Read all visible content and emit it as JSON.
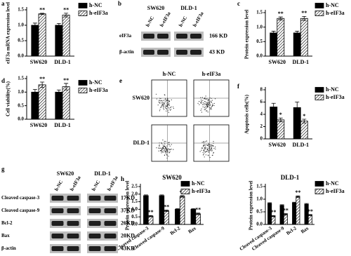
{
  "chart_data": [
    {
      "type": "bar",
      "panel": "a",
      "ylabel": "eIF3a mRNA expression level",
      "categories": [
        "SW620",
        "DLD-1"
      ],
      "series": [
        {
          "name": "h-NC",
          "color": "#000000",
          "hatch": false,
          "values": [
            1.0,
            1.0
          ],
          "errors": [
            0.07,
            0.06
          ]
        },
        {
          "name": "h-eIF3a",
          "color": "#000000",
          "hatch": true,
          "values": [
            1.37,
            1.33
          ],
          "errors": [
            0.02,
            0.06
          ],
          "marks": [
            "**",
            "**"
          ]
        }
      ],
      "ylim": [
        0,
        1.5
      ],
      "yticks": [
        {
          "value": 0,
          "label": "0.0"
        },
        0.5,
        {
          "value": 1,
          "label": "1.0"
        },
        1.5
      ]
    },
    {
      "type": "bar",
      "panel": "c",
      "ylabel": "Protein expression level",
      "categories": [
        "SW620",
        "DLD-1"
      ],
      "series": [
        {
          "name": "h-NC",
          "color": "#000000",
          "hatch": false,
          "values": [
            0.8,
            0.8
          ],
          "errors": [
            0.06,
            0.06
          ]
        },
        {
          "name": "h-eIF3a",
          "color": "#000000",
          "hatch": true,
          "values": [
            1.3,
            1.3
          ],
          "errors": [
            0.05,
            0.07
          ],
          "marks": [
            "**",
            "**"
          ]
        }
      ],
      "ylim": [
        0,
        1.5
      ],
      "yticks": [
        {
          "value": 0,
          "label": "0.0"
        },
        0.5,
        {
          "value": 1,
          "label": "1.0"
        },
        1.5
      ]
    },
    {
      "type": "bar",
      "panel": "d",
      "ylabel": "Cell viability(%)",
      "categories": [
        "SW620",
        "DLD-1"
      ],
      "series": [
        {
          "name": "h-NC",
          "color": "#000000",
          "hatch": false,
          "values": [
            1.0,
            1.0
          ],
          "errors": [
            0.1,
            0.08
          ]
        },
        {
          "name": "h-eIF3a",
          "color": "#000000",
          "hatch": true,
          "values": [
            1.27,
            1.2
          ],
          "errors": [
            0.1,
            0.12
          ],
          "marks": [
            "**",
            "**"
          ]
        }
      ],
      "ylim": [
        0,
        1.5
      ],
      "yticks": [
        {
          "value": 0,
          "label": "0.0"
        },
        0.5,
        {
          "value": 1,
          "label": "1.0"
        },
        1.5
      ]
    },
    {
      "type": "bar",
      "panel": "f",
      "ylabel": "Apoptosis cells(%)",
      "categories": [
        "SW620",
        "DLD-1"
      ],
      "series": [
        {
          "name": "h-NC",
          "color": "#000000",
          "hatch": false,
          "values": [
            5.2,
            5.1
          ],
          "errors": [
            0.6,
            0.9
          ]
        },
        {
          "name": "h-eIF3a",
          "color": "#000000",
          "hatch": true,
          "values": [
            3.1,
            2.9
          ],
          "errors": [
            0.3,
            0.3
          ],
          "marks": [
            "*",
            "*"
          ]
        }
      ],
      "ylim": [
        0,
        8
      ],
      "yticks": [
        0,
        2,
        4,
        6,
        8
      ]
    },
    {
      "type": "bar",
      "panel": "h",
      "title": "SW620",
      "ylabel": "Protein expression level",
      "categories": [
        "Cleaved caspase-3",
        "Cleaved caspase-9",
        "Bcl-2",
        "Bax"
      ],
      "series": [
        {
          "name": "h-NC",
          "color": "#000000",
          "hatch": false,
          "values": [
            1.9,
            1.9,
            1.0,
            1.0
          ],
          "errors": [
            0.05,
            0.05,
            0.04,
            0.04
          ]
        },
        {
          "name": "h-eIF3a",
          "color": "#000000",
          "hatch": true,
          "values": [
            0.55,
            0.9,
            1.85,
            0.7
          ],
          "errors": [
            0.04,
            0.05,
            0.05,
            0.05
          ],
          "marks": [
            "**",
            "**",
            "**",
            "**"
          ]
        }
      ],
      "ylim": [
        0,
        2.5
      ],
      "yticks": [
        {
          "value": 0,
          "label": "0.0"
        },
        0.5,
        {
          "value": 1,
          "label": "1.0"
        },
        1.5,
        {
          "value": 2,
          "label": "2.0"
        },
        2.5
      ]
    },
    {
      "type": "bar",
      "title": "DLD-1",
      "ylabel": "Protein expression level",
      "categories": [
        "Cleaved caspase-3",
        "Cleaved caspase-9",
        "Bcl-2",
        "Bax"
      ],
      "series": [
        {
          "name": "h-NC",
          "color": "#000000",
          "hatch": false,
          "values": [
            0.83,
            0.75,
            0.85,
            0.8
          ],
          "errors": [
            0.03,
            0.03,
            0.03,
            0.03
          ]
        },
        {
          "name": "h-eIF3a",
          "color": "#000000",
          "hatch": true,
          "values": [
            0.33,
            0.4,
            1.1,
            0.37
          ],
          "errors": [
            0.02,
            0.03,
            0.03,
            0.02
          ],
          "marks": [
            "**",
            "**",
            "**",
            "**"
          ]
        }
      ],
      "ylim": [
        0,
        1.5
      ],
      "yticks": [
        {
          "value": 0,
          "label": "0.0"
        },
        0.5,
        {
          "value": 1,
          "label": "1.0"
        },
        1.5
      ]
    }
  ],
  "blots": [
    {
      "panel": "b",
      "groups": [
        "SW620",
        "DLD-1"
      ],
      "lanes": [
        "h-NC",
        "h-eIF3a",
        "h-NC",
        "h-eIF3a"
      ],
      "rows": [
        {
          "label": "eIF3a",
          "size": "166 KD"
        },
        {
          "label": "β-actin",
          "size": "43 KD"
        }
      ]
    },
    {
      "panel": "g",
      "groups": [
        "SW620",
        "DLD-1"
      ],
      "lanes": [
        "h-NC",
        "h-eIF3a",
        "h-NC",
        "h-eIF3a"
      ],
      "rows": [
        {
          "label": "Cleaved caspase-3",
          "size": "17KD"
        },
        {
          "label": "Cleaved caspase-9",
          "size": "37KD"
        },
        {
          "label": "Bcl-2",
          "size": "26KD"
        },
        {
          "label": "Bax",
          "size": "20KD"
        },
        {
          "label": "β-actin",
          "size": "43KD"
        }
      ]
    }
  ],
  "flow": {
    "panel": "e",
    "columns": [
      "h-NC",
      "h-eIF3a"
    ],
    "rows": [
      "SW620",
      "DLD-1"
    ]
  }
}
